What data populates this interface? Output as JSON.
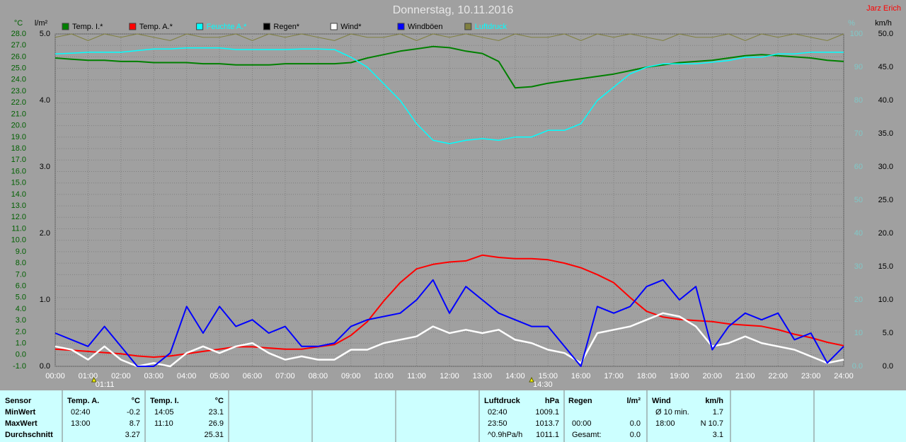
{
  "chart_data": {
    "type": "line",
    "title": "Donnerstag, 10.11.2016",
    "author": "Jarz Erich",
    "x": [
      0,
      0.5,
      1,
      1.5,
      2,
      2.5,
      3,
      3.5,
      4,
      4.5,
      5,
      5.5,
      6,
      6.5,
      7,
      7.5,
      8,
      8.5,
      9,
      9.5,
      10,
      10.5,
      11,
      11.5,
      12,
      12.5,
      13,
      13.5,
      14,
      14.5,
      15,
      15.5,
      16,
      16.5,
      17,
      17.5,
      18,
      18.5,
      19,
      19.5,
      20,
      20.5,
      21,
      21.5,
      22,
      22.5,
      23,
      23.5,
      24
    ],
    "xlim": [
      0,
      24
    ],
    "xticks": [
      {
        "value": 0,
        "label": "00:00"
      },
      {
        "value": 1,
        "label": "01:00"
      },
      {
        "value": 2,
        "label": "02:00"
      },
      {
        "value": 3,
        "label": "03:00"
      },
      {
        "value": 4,
        "label": "04:00"
      },
      {
        "value": 5,
        "label": "05:00"
      },
      {
        "value": 6,
        "label": "06:00"
      },
      {
        "value": 7,
        "label": "07:00"
      },
      {
        "value": 8,
        "label": "08:00"
      },
      {
        "value": 9,
        "label": "09:00"
      },
      {
        "value": 10,
        "label": "10:00"
      },
      {
        "value": 11,
        "label": "11:00"
      },
      {
        "value": 12,
        "label": "12:00"
      },
      {
        "value": 13,
        "label": "13:00"
      },
      {
        "value": 14,
        "label": "14:00"
      },
      {
        "value": 15,
        "label": "15:00"
      },
      {
        "value": 16,
        "label": "16:00"
      },
      {
        "value": 17,
        "label": "17:00"
      },
      {
        "value": 18,
        "label": "18:00"
      },
      {
        "value": 19,
        "label": "19:00"
      },
      {
        "value": 20,
        "label": "20:00"
      },
      {
        "value": 21,
        "label": "21:00"
      },
      {
        "value": 22,
        "label": "22:00"
      },
      {
        "value": 23,
        "label": "23:00"
      },
      {
        "value": 24,
        "label": "24:00"
      }
    ],
    "grid": true,
    "y_axes": [
      {
        "id": "temp",
        "unit": "°C",
        "color": "#006000",
        "lim": [
          -1,
          28
        ],
        "ticks": [
          {
            "value": -1,
            "label": "-1.0"
          },
          {
            "value": 0,
            "label": "0.0"
          },
          {
            "value": 1,
            "label": "1.0"
          },
          {
            "value": 2,
            "label": "2.0"
          },
          {
            "value": 3,
            "label": "3.0"
          },
          {
            "value": 4,
            "label": "4.0"
          },
          {
            "value": 5,
            "label": "5.0"
          },
          {
            "value": 6,
            "label": "6.0"
          },
          {
            "value": 7,
            "label": "7.0"
          },
          {
            "value": 8,
            "label": "8.0"
          },
          {
            "value": 9,
            "label": "9.0"
          },
          {
            "value": 10,
            "label": "10.0"
          },
          {
            "value": 11,
            "label": "11.0"
          },
          {
            "value": 12,
            "label": "12.0"
          },
          {
            "value": 13,
            "label": "13.0"
          },
          {
            "value": 14,
            "label": "14.0"
          },
          {
            "value": 15,
            "label": "15.0"
          },
          {
            "value": 16,
            "label": "16.0"
          },
          {
            "value": 17,
            "label": "17.0"
          },
          {
            "value": 18,
            "label": "18.0"
          },
          {
            "value": 19,
            "label": "19.0"
          },
          {
            "value": 20,
            "label": "20.0"
          },
          {
            "value": 21,
            "label": "21.0"
          },
          {
            "value": 22,
            "label": "22.0"
          },
          {
            "value": 23,
            "label": "23.0"
          },
          {
            "value": 24,
            "label": "24.0"
          },
          {
            "value": 25,
            "label": "25.0"
          },
          {
            "value": 26,
            "label": "26.0"
          },
          {
            "value": 27,
            "label": "27.0"
          },
          {
            "value": 28,
            "label": "28.0"
          }
        ]
      },
      {
        "id": "rain",
        "unit": "l/m²",
        "color": "#000000",
        "lim": [
          0,
          5
        ],
        "ticks": [
          {
            "value": 0,
            "label": "0.0"
          },
          {
            "value": 1,
            "label": "1.0"
          },
          {
            "value": 2,
            "label": "2.0"
          },
          {
            "value": 3,
            "label": "3.0"
          },
          {
            "value": 4,
            "label": "4.0"
          },
          {
            "value": 5,
            "label": "5.0"
          }
        ]
      },
      {
        "id": "pct",
        "unit": "%",
        "color": "#80c8c8",
        "lim": [
          0,
          100
        ],
        "ticks": [
          {
            "value": 0,
            "label": "0.0"
          },
          10,
          20,
          30,
          40,
          50,
          60,
          70,
          80,
          90,
          100
        ]
      },
      {
        "id": "kmh",
        "unit": "km/h",
        "color": "#000000",
        "lim": [
          0,
          50
        ],
        "ticks": [
          {
            "value": 0,
            "label": "0.0"
          },
          {
            "value": 5,
            "label": "5.0"
          },
          {
            "value": 10,
            "label": "10.0"
          },
          {
            "value": 15,
            "label": "15.0"
          },
          {
            "value": 20,
            "label": "20.0"
          },
          {
            "value": 25,
            "label": "25.0"
          },
          {
            "value": 30,
            "label": "30.0"
          },
          {
            "value": 35,
            "label": "35.0"
          },
          {
            "value": 40,
            "label": "40.0"
          },
          {
            "value": 45,
            "label": "45.0"
          },
          {
            "value": 50,
            "label": "50.0"
          }
        ]
      }
    ],
    "series": [
      {
        "name": "Temp. I.*",
        "color": "#008000",
        "label_color": "#000000",
        "axis": "temp",
        "values": [
          25.9,
          25.8,
          25.7,
          25.7,
          25.6,
          25.6,
          25.5,
          25.5,
          25.5,
          25.4,
          25.4,
          25.3,
          25.3,
          25.3,
          25.4,
          25.4,
          25.4,
          25.4,
          25.5,
          25.9,
          26.2,
          26.5,
          26.7,
          26.9,
          26.8,
          26.5,
          26.3,
          25.6,
          23.3,
          23.4,
          23.7,
          23.9,
          24.1,
          24.3,
          24.5,
          24.8,
          25.1,
          25.3,
          25.5,
          25.6,
          25.7,
          25.9,
          26.1,
          26.2,
          26.1,
          26.0,
          25.9,
          25.7,
          25.6
        ]
      },
      {
        "name": "Temp. A.*",
        "color": "#ff0000",
        "label_color": "#000000",
        "axis": "temp",
        "values": [
          0.5,
          0.4,
          0.3,
          0.2,
          0.1,
          -0.1,
          -0.2,
          -0.1,
          0.1,
          0.3,
          0.5,
          0.7,
          0.7,
          0.6,
          0.5,
          0.5,
          0.7,
          0.9,
          1.7,
          2.9,
          4.7,
          6.3,
          7.5,
          7.9,
          8.1,
          8.2,
          8.7,
          8.5,
          8.4,
          8.4,
          8.3,
          8.0,
          7.6,
          7.0,
          6.3,
          5.0,
          3.8,
          3.3,
          3.1,
          3.0,
          2.9,
          2.7,
          2.6,
          2.5,
          2.2,
          1.8,
          1.5,
          1.1,
          0.8
        ]
      },
      {
        "name": "Feuchte A.*",
        "color": "#00ffff",
        "label_color": "#00ffff",
        "axis": "pct",
        "values": [
          94,
          94.2,
          94.5,
          94.5,
          94.5,
          95,
          95.5,
          95.5,
          95.8,
          95.8,
          95.8,
          95.3,
          95.3,
          95.3,
          95.3,
          95.5,
          95.5,
          95.3,
          93,
          90,
          85,
          80,
          73,
          68,
          67,
          68,
          68.5,
          68,
          69,
          69,
          71,
          71,
          73,
          80,
          84,
          88,
          90,
          91,
          91,
          91,
          91.5,
          92,
          93,
          93,
          94,
          94,
          94.5,
          94.5,
          94.5
        ]
      },
      {
        "name": "Regen*",
        "color": "#000000",
        "label_color": "#000000",
        "axis": "rain"
      },
      {
        "name": "Wind*",
        "color": "#ffffff",
        "label_color": "#000000",
        "axis": "kmh",
        "values": [
          3,
          2.5,
          1,
          3,
          1,
          0,
          0.5,
          0,
          2,
          3,
          2,
          3,
          3.5,
          2,
          1,
          1.5,
          1,
          1,
          2.5,
          2.5,
          3.5,
          4,
          4.5,
          6,
          5,
          5.5,
          5,
          5.5,
          4,
          3.5,
          2.5,
          2,
          0.5,
          5,
          5.5,
          6,
          7,
          8,
          7.5,
          6,
          3,
          3.5,
          4.5,
          3.5,
          3,
          2.5,
          1.5,
          0.5,
          1
        ]
      },
      {
        "name": "Windböen",
        "color": "#0000ff",
        "label_color": "#000000",
        "axis": "kmh",
        "values": [
          5,
          4,
          3,
          6,
          3,
          0,
          0,
          2,
          9,
          5,
          9,
          6,
          7,
          5,
          6,
          3,
          3,
          3.5,
          6,
          7,
          7.5,
          8,
          10,
          13,
          8,
          12,
          10,
          8,
          7,
          6,
          6,
          3,
          0,
          9,
          8,
          9,
          12,
          13,
          10,
          12,
          2.5,
          6,
          8,
          7,
          8,
          4,
          5,
          0.5,
          3
        ]
      },
      {
        "name": "Luftdruck",
        "color": "#808040",
        "label_color": "#00ffff",
        "axis": "pct",
        "values": [
          99,
          100,
          98,
          100,
          99,
          100,
          99,
          98,
          100,
          99,
          99,
          100,
          98,
          100,
          99,
          100,
          99,
          98,
          100,
          99,
          99,
          100,
          98,
          100,
          99,
          100,
          99,
          98,
          100,
          99,
          99,
          100,
          98,
          100,
          99,
          100,
          99,
          98,
          100,
          99,
          99,
          100,
          98,
          100,
          99,
          100,
          99,
          98,
          100
        ]
      }
    ],
    "annotations": [
      {
        "x": 1.18,
        "label": "01:11"
      },
      {
        "x": 14.5,
        "label": "14:30"
      }
    ]
  },
  "table": {
    "sensor": "Sensor",
    "row_labels": [
      "MinWert",
      "MaxWert",
      "Durchschnitt"
    ],
    "groups": [
      {
        "title": "Temp. A.",
        "unit": "°C",
        "rows": [
          [
            "02:40",
            "-0.2"
          ],
          [
            "13:00",
            "8.7"
          ],
          [
            null,
            "3.27"
          ]
        ]
      },
      {
        "title": "Temp. I.",
        "unit": "°C",
        "rows": [
          [
            "14:05",
            "23.1"
          ],
          [
            "11:10",
            "26.9"
          ],
          [
            null,
            "25.31"
          ]
        ]
      },
      {
        "title": "Luftdruck",
        "unit": "hPa",
        "rows": [
          [
            "02:40",
            "1009.1"
          ],
          [
            "23:50",
            "1013.7"
          ],
          [
            "^0.9hPa/h",
            "1011.1"
          ]
        ]
      },
      {
        "title": "Regen",
        "unit": "l/m²",
        "rows": [
          [
            null,
            null
          ],
          [
            "00:00",
            "0.0"
          ],
          [
            "Gesamt:",
            "0.0"
          ]
        ]
      },
      {
        "title": "Wind",
        "unit": "km/h",
        "rows": [
          [
            "Ø 10 min.",
            "1.7"
          ],
          [
            "18:00",
            "N 10.7"
          ],
          [
            null,
            "3.1"
          ]
        ]
      }
    ]
  }
}
